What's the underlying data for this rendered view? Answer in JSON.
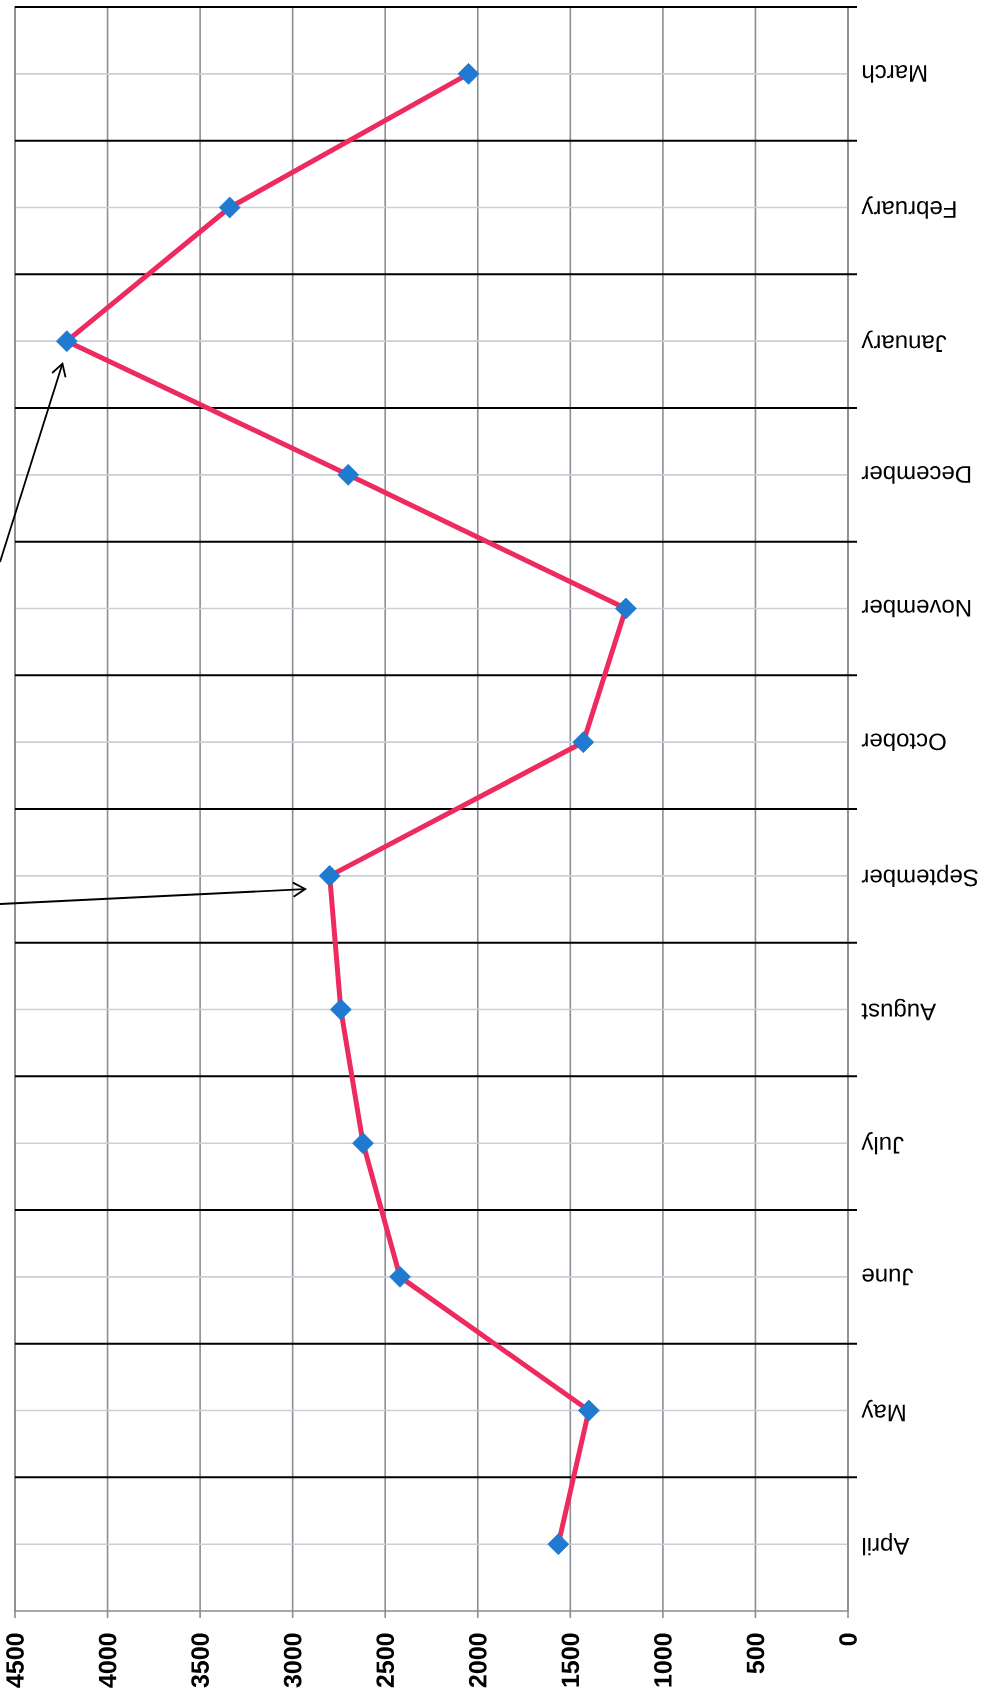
{
  "chart_data": {
    "type": "line",
    "orientation": "horizontal",
    "categories": [
      "March",
      "February",
      "January",
      "December",
      "November",
      "October",
      "September",
      "August",
      "July",
      "June",
      "May",
      "April"
    ],
    "series": [
      {
        "color": "#ee2b5f",
        "colors": [
          "#1f7ad0",
          "#1f7ad0",
          "#1f7ad0",
          "#1f7ad0",
          "#1f7ad0",
          "#1f7ad0",
          "#1f7ad0",
          "#1f7ad0",
          "#1f7ad0",
          "#1f7ad0",
          "#1f7ad0",
          "#1f7ad0"
        ],
        "values": [
          2050,
          3340,
          4220,
          2700,
          1200,
          1430,
          2800,
          2740,
          2620,
          2420,
          1400,
          1565
        ]
      }
    ],
    "xlim": [
      4500,
      0
    ],
    "xticks": [
      4500,
      4000,
      3500,
      3000,
      2500,
      2000,
      1500,
      1000,
      500,
      0
    ],
    "grid": true,
    "marker": "diamond",
    "line_style": "solid"
  }
}
